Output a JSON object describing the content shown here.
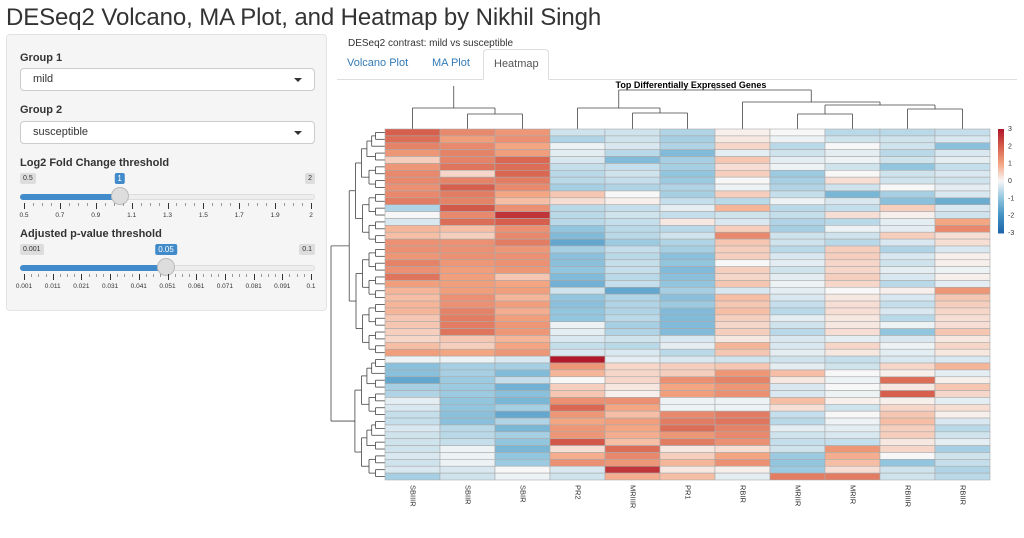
{
  "app": {
    "title": "DESeq2 Volcano, MA Plot, and Heatmap by Nikhil Singh"
  },
  "sidebar": {
    "group1": {
      "label": "Group 1",
      "value": "mild"
    },
    "group2": {
      "label": "Group 2",
      "value": "susceptible"
    },
    "lfc_slider": {
      "label": "Log2 Fold Change threshold",
      "min_label": "0.5",
      "max_label": "2",
      "value_label": "1",
      "min": 0.5,
      "max": 2,
      "value": 1,
      "tick_labels": [
        "0.5",
        "0.7",
        "0.9",
        "1.1",
        "1.3",
        "1.5",
        "1.7",
        "1.9",
        "2"
      ],
      "accent": "#428bca"
    },
    "padj_slider": {
      "label": "Adjusted p-value threshold",
      "min_label": "0.001",
      "max_label": "0.1",
      "value_label": "0.05",
      "min": 0.001,
      "max": 0.1,
      "value": 0.05,
      "tick_labels": [
        "0.001",
        "0.011",
        "0.021",
        "0.031",
        "0.041",
        "0.051",
        "0.061",
        "0.071",
        "0.081",
        "0.091",
        "0.1"
      ],
      "accent": "#428bca"
    }
  },
  "main": {
    "contrast_text": "DESeq2 contrast: mild vs susceptible",
    "tabs": [
      {
        "label": "Volcano Plot",
        "active": false
      },
      {
        "label": "MA Plot",
        "active": false
      },
      {
        "label": "Heatmap",
        "active": true
      }
    ]
  },
  "chart_data": {
    "type": "heatmap",
    "title": "Top Differentially Expressed Genes",
    "columns": [
      "SBIIIR",
      "SBIIR",
      "SBIR",
      "PR2",
      "MRIIIR",
      "PR1",
      "RBIR",
      "MRIIR",
      "MRIR",
      "RBIIIR",
      "RBIIR"
    ],
    "row_labels": [],
    "color_scale": {
      "min": -3,
      "max": 3,
      "low": "#2166ac",
      "mid": "#f7f7f7",
      "high": "#b2182b",
      "ticks": [
        "3",
        "2",
        "1",
        "0",
        "-1",
        "-2",
        "-3"
      ]
    },
    "column_dendrogram": true,
    "row_dendrogram": true,
    "values": [
      [
        2.0,
        1.4,
        1.2,
        -0.4,
        -0.4,
        -0.7,
        0.1,
        0.0,
        -0.6,
        -0.6,
        -0.5
      ],
      [
        1.8,
        1.1,
        1.3,
        -0.7,
        -0.4,
        -0.8,
        0.2,
        -0.1,
        -0.4,
        -0.4,
        -0.3
      ],
      [
        1.5,
        1.4,
        1.0,
        -0.1,
        -0.3,
        -0.7,
        0.4,
        -0.6,
        0.0,
        -0.4,
        -1.1
      ],
      [
        1.2,
        1.5,
        1.1,
        -0.2,
        -0.6,
        -1.2,
        -0.2,
        -0.4,
        -0.2,
        -0.6,
        -0.3
      ],
      [
        0.5,
        1.5,
        1.9,
        -0.3,
        -1.2,
        -0.8,
        0.6,
        -0.2,
        -0.1,
        -0.4,
        -0.2
      ],
      [
        1.2,
        1.7,
        1.8,
        -0.5,
        -0.5,
        -0.8,
        0.3,
        -0.1,
        -0.4,
        -1.0,
        -0.5
      ],
      [
        1.4,
        0.4,
        1.9,
        -0.6,
        -0.4,
        -1.0,
        0.5,
        -0.9,
        0.0,
        -0.4,
        -0.3
      ],
      [
        1.4,
        1.5,
        1.6,
        -0.6,
        -0.5,
        -0.9,
        0.0,
        -0.8,
        0.3,
        -0.4,
        -0.4
      ],
      [
        1.3,
        2.0,
        1.4,
        -0.8,
        -0.7,
        -0.7,
        -0.1,
        -0.7,
        -0.4,
        0.0,
        -0.2
      ],
      [
        1.4,
        1.6,
        1.0,
        0.6,
        0.0,
        -0.8,
        0.5,
        -0.5,
        -1.3,
        -0.8,
        -0.3
      ],
      [
        1.6,
        1.5,
        0.7,
        0.3,
        0.1,
        -0.5,
        -0.6,
        -0.1,
        -0.3,
        -1.1,
        -1.5
      ],
      [
        -0.7,
        2.1,
        1.3,
        -0.6,
        -0.5,
        -0.2,
        0.8,
        -0.6,
        -0.5,
        0.5,
        -0.3
      ],
      [
        0.0,
        1.4,
        2.6,
        -0.6,
        -0.4,
        -0.5,
        -0.4,
        -0.5,
        0.3,
        0.1,
        -0.4
      ],
      [
        -0.3,
        1.8,
        2.0,
        -0.6,
        -0.5,
        0.2,
        -0.3,
        -0.7,
        -0.6,
        -0.2,
        1.0
      ],
      [
        0.8,
        0.7,
        1.3,
        -1.0,
        -0.6,
        -0.6,
        0.5,
        -0.8,
        -0.1,
        -0.2,
        1.4
      ],
      [
        0.7,
        0.5,
        1.4,
        -1.2,
        -0.6,
        -0.4,
        1.4,
        -0.4,
        -0.4,
        0.5,
        0.3
      ],
      [
        1.3,
        1.3,
        1.6,
        -1.6,
        -0.9,
        -0.7,
        0.6,
        -0.4,
        -0.6,
        -0.3,
        0.3
      ],
      [
        1.3,
        1.3,
        1.2,
        -0.8,
        -0.5,
        -0.8,
        0.5,
        -0.6,
        0.5,
        -0.7,
        -0.3
      ],
      [
        1.2,
        1.3,
        1.3,
        -1.1,
        -0.6,
        -1.1,
        0.5,
        -0.3,
        0.5,
        -0.3,
        0.1
      ],
      [
        1.5,
        1.2,
        1.3,
        -1.1,
        -0.5,
        -1.0,
        0.0,
        -0.2,
        0.4,
        -0.4,
        0.1
      ],
      [
        1.3,
        1.1,
        1.2,
        -1.0,
        -0.5,
        -1.2,
        0.5,
        -0.4,
        0.4,
        -0.2,
        -0.1
      ],
      [
        1.7,
        1.1,
        0.6,
        -1.2,
        -0.6,
        -1.1,
        0.4,
        -0.2,
        0.5,
        -0.3,
        0.1
      ],
      [
        1.1,
        1.1,
        1.0,
        -1.4,
        -0.5,
        -1.0,
        0.6,
        -0.1,
        0.4,
        -0.6,
        -0.2
      ],
      [
        0.8,
        1.1,
        1.1,
        -0.4,
        -1.6,
        -0.8,
        -0.3,
        -0.2,
        0.0,
        0.1,
        1.2
      ],
      [
        0.7,
        1.3,
        0.8,
        -1.0,
        -0.7,
        -1.1,
        0.7,
        -0.3,
        0.2,
        -0.3,
        0.6
      ],
      [
        0.8,
        1.3,
        1.1,
        -1.1,
        -0.7,
        -0.9,
        0.6,
        -0.5,
        0.3,
        -0.5,
        0.5
      ],
      [
        0.8,
        1.5,
        0.9,
        -1.0,
        -0.7,
        -1.2,
        0.7,
        -0.6,
        0.3,
        -0.3,
        0.4
      ],
      [
        0.6,
        1.6,
        1.1,
        -1.0,
        -0.6,
        -1.2,
        0.5,
        -0.2,
        0.2,
        -0.6,
        0.3
      ],
      [
        0.6,
        1.6,
        1.2,
        -0.1,
        -0.8,
        -1.2,
        0.4,
        -0.4,
        0.2,
        -0.1,
        0.3
      ],
      [
        0.5,
        1.7,
        1.2,
        -0.2,
        -0.7,
        -1.2,
        0.5,
        -0.6,
        0.3,
        -1.0,
        0.6
      ],
      [
        0.4,
        0.6,
        0.8,
        -0.3,
        -0.4,
        -0.3,
        0.2,
        -0.3,
        -0.2,
        -0.3,
        0.2
      ],
      [
        0.7,
        0.5,
        1.0,
        -0.5,
        -0.6,
        -0.2,
        0.8,
        -0.3,
        0.4,
        -0.1,
        0.4
      ],
      [
        1.1,
        1.0,
        1.2,
        -0.3,
        -0.3,
        -0.6,
        0.6,
        -0.2,
        0.2,
        -0.2,
        0.2
      ],
      [
        -0.1,
        -0.1,
        -0.3,
        3.0,
        -0.2,
        -0.3,
        -0.4,
        -0.4,
        -0.5,
        -0.3,
        -0.3
      ],
      [
        -1.1,
        -0.8,
        -0.8,
        1.2,
        0.4,
        0.5,
        0.6,
        -0.2,
        -0.4,
        0.4,
        0.8
      ],
      [
        -1.1,
        -0.8,
        -1.2,
        0.8,
        0.4,
        0.5,
        1.2,
        0.7,
        0.0,
        0.1,
        -0.2
      ],
      [
        -1.6,
        -0.9,
        -0.5,
        0.0,
        0.4,
        1.3,
        1.5,
        0.2,
        -0.1,
        1.8,
        0.1
      ],
      [
        -0.8,
        -0.9,
        -1.4,
        0.5,
        0.2,
        1.0,
        1.2,
        -0.3,
        0.0,
        0.2,
        0.6
      ],
      [
        -0.7,
        -0.9,
        -1.1,
        0.6,
        0.1,
        1.1,
        1.3,
        -0.3,
        -0.1,
        2.0,
        0.4
      ],
      [
        -0.2,
        -1.0,
        -1.3,
        1.3,
        1.3,
        -0.1,
        -0.1,
        0.7,
        0.1,
        0.1,
        -0.2
      ],
      [
        -0.3,
        -1.0,
        -0.8,
        1.9,
        1.0,
        -0.1,
        -0.1,
        0.3,
        -0.4,
        0.4,
        0.3
      ],
      [
        -0.5,
        -1.1,
        -1.6,
        1.2,
        0.7,
        1.4,
        1.6,
        -0.5,
        0.0,
        0.6,
        0.1
      ],
      [
        -0.5,
        -1.1,
        -0.7,
        1.0,
        1.1,
        1.6,
        1.7,
        -0.6,
        -0.1,
        0.7,
        -0.3
      ],
      [
        -0.3,
        -0.6,
        -1.3,
        1.2,
        1.0,
        1.8,
        1.5,
        -0.2,
        -0.2,
        0.5,
        -0.6
      ],
      [
        -0.4,
        -0.6,
        -0.8,
        1.2,
        0.9,
        1.2,
        1.4,
        -0.4,
        -0.3,
        0.5,
        -0.4
      ],
      [
        -0.4,
        -0.5,
        -1.0,
        2.1,
        0.7,
        1.6,
        1.3,
        -0.5,
        -0.5,
        0.2,
        -0.2
      ],
      [
        -0.4,
        -0.1,
        -1.3,
        0.3,
        1.8,
        0.2,
        0.3,
        -0.4,
        1.2,
        0.4,
        -0.8
      ],
      [
        -0.3,
        -0.1,
        -1.0,
        0.9,
        1.4,
        0.5,
        1.0,
        -0.9,
        0.9,
        0.0,
        -0.4
      ],
      [
        -0.4,
        -0.1,
        -0.9,
        1.3,
        1.2,
        0.8,
        1.3,
        -1.0,
        0.7,
        -1.0,
        -0.5
      ],
      [
        -0.3,
        -0.3,
        0.0,
        -0.3,
        2.6,
        0.2,
        0.1,
        -0.9,
        0.3,
        -0.4,
        -0.7
      ],
      [
        -0.8,
        -0.4,
        -0.1,
        -0.4,
        0.9,
        0.7,
        -0.2,
        1.6,
        1.6,
        -0.4,
        -0.6
      ]
    ]
  }
}
